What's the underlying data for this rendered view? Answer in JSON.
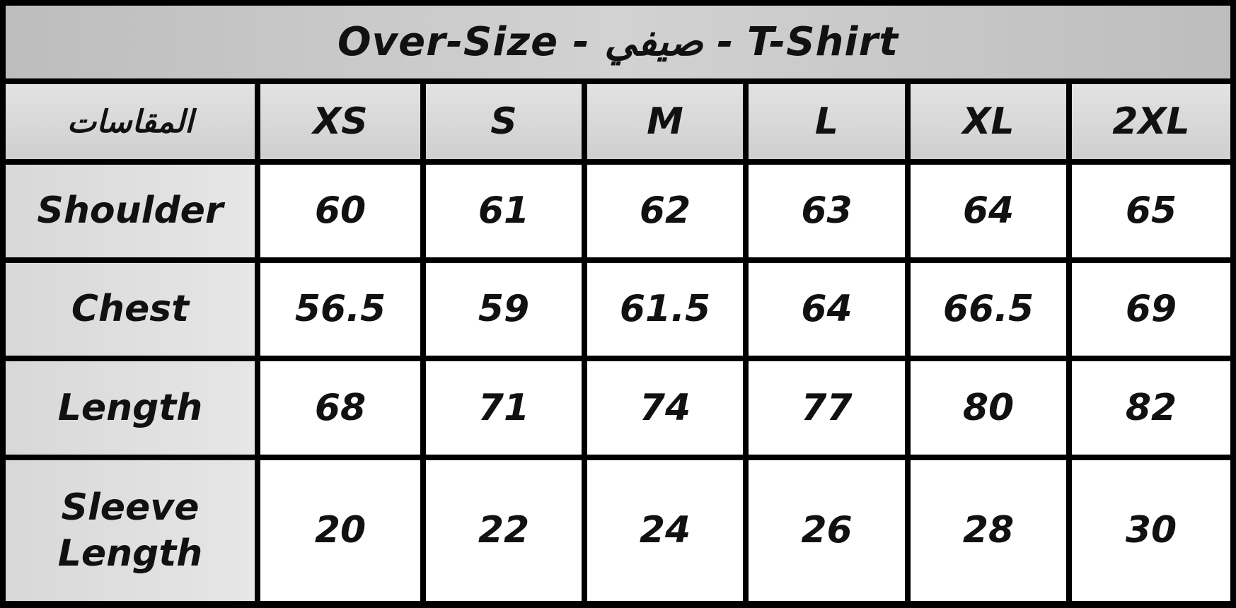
{
  "title": "Over-Size - صيفي - T-Shirt",
  "header": {
    "corner": "المقاسات",
    "sizes": [
      "XS",
      "S",
      "M",
      "L",
      "XL",
      "2XL"
    ]
  },
  "rows": [
    {
      "label": "Shoulder",
      "values": [
        "60",
        "61",
        "62",
        "63",
        "64",
        "65"
      ]
    },
    {
      "label": "Chest",
      "values": [
        "56.5",
        "59",
        "61.5",
        "64",
        "66.5",
        "69"
      ]
    },
    {
      "label": "Length",
      "values": [
        "68",
        "71",
        "74",
        "77",
        "80",
        "82"
      ]
    },
    {
      "label": "Sleeve Length",
      "values": [
        "20",
        "22",
        "24",
        "26",
        "28",
        "30"
      ]
    }
  ]
}
